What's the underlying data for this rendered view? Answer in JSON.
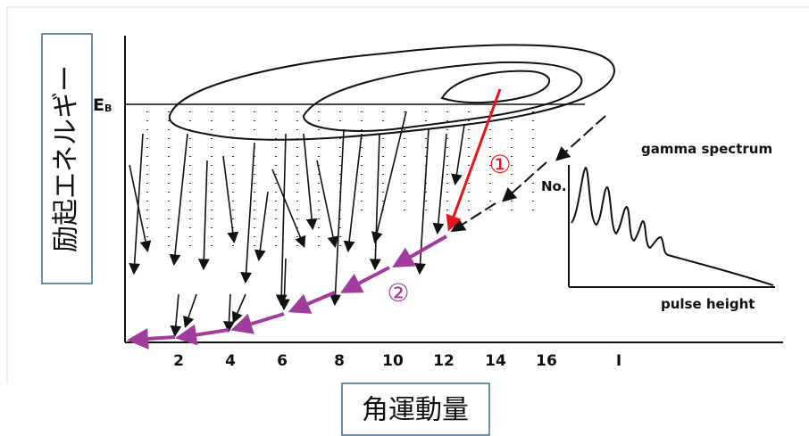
{
  "y_axis_label": "励起エネルギー",
  "x_axis_label": "角運動量",
  "energy_level": {
    "symbol": "E",
    "subscript": "B"
  },
  "x_tick_labels": [
    "2",
    "4",
    "6",
    "8",
    "10",
    "12",
    "14",
    "16",
    "I"
  ],
  "inset": {
    "title": "gamma spectrum",
    "y_label": "No.",
    "x_label": "pulse height"
  },
  "markers": {
    "first": "①",
    "second": "②"
  }
}
